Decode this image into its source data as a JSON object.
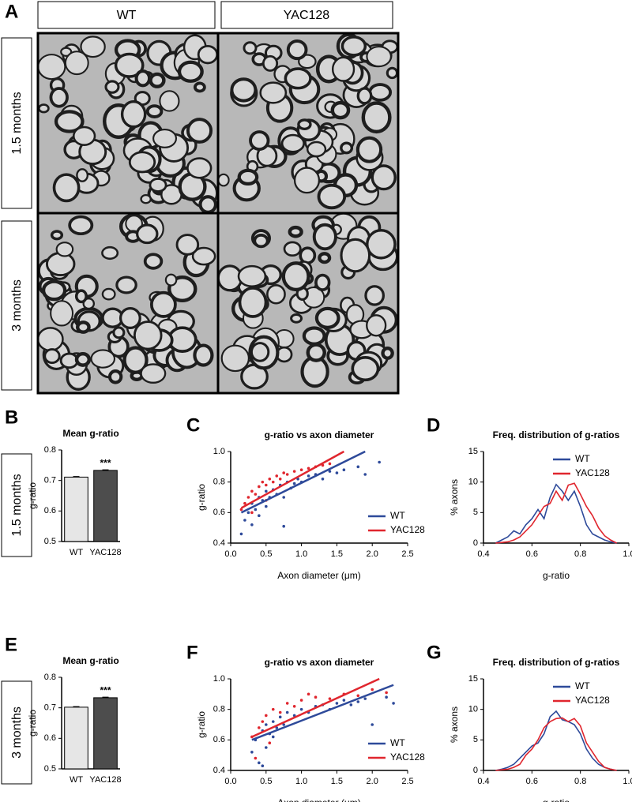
{
  "figure": {
    "panels": [
      "A",
      "B",
      "C",
      "D",
      "E",
      "F",
      "G"
    ],
    "columns": [
      "WT",
      "YAC128"
    ],
    "rows": [
      "1.5 months",
      "3 months"
    ],
    "chart_rows": [
      "1.5 months",
      "3 months"
    ]
  },
  "chart_data": [
    {
      "type": "bar",
      "title": "Mean g-ratio",
      "ylabel": "g-ratio",
      "categories": [
        "WT",
        "YAC128"
      ],
      "values": [
        0.711,
        0.733
      ],
      "errors": [
        0.002,
        0.002
      ],
      "colors": [
        "#e6e6e6",
        "#4d4d4d"
      ],
      "annotation": "***",
      "ylim": [
        0.5,
        0.8
      ],
      "yticks": [
        0.5,
        0.6,
        0.7,
        0.8
      ]
    },
    {
      "type": "scatter",
      "title": "g-ratio vs axon diameter",
      "xlabel": "Axon diameter (μm)",
      "ylabel": "g-ratio",
      "xlim": [
        0,
        2.5
      ],
      "xticks": [
        {
          "value": 0,
          "label": "0.0"
        },
        0.5,
        {
          "value": 1,
          "label": "1.0"
        },
        1.5,
        {
          "value": 2,
          "label": "2.0"
        },
        2.5
      ],
      "ylim": [
        0.4,
        1
      ],
      "yticks": [
        0.4,
        0.6,
        0.8,
        {
          "value": 1,
          "label": "1.0"
        }
      ],
      "legend": "bottom-right",
      "series": [
        {
          "name": "WT",
          "color": "#2e4a9a",
          "x": [
            0.15,
            0.2,
            0.25,
            0.3,
            0.3,
            0.35,
            0.4,
            0.4,
            0.45,
            0.5,
            0.5,
            0.55,
            0.6,
            0.65,
            0.7,
            0.75,
            0.8,
            0.85,
            0.9,
            0.95,
            1.0,
            1.1,
            1.2,
            1.3,
            1.4,
            1.5,
            1.6,
            1.8,
            1.9,
            2.1,
            0.75
          ],
          "values": [
            0.46,
            0.55,
            0.6,
            0.52,
            0.66,
            0.62,
            0.7,
            0.58,
            0.68,
            0.64,
            0.74,
            0.7,
            0.75,
            0.72,
            0.78,
            0.7,
            0.8,
            0.76,
            0.79,
            0.82,
            0.8,
            0.84,
            0.85,
            0.82,
            0.87,
            0.86,
            0.88,
            0.9,
            0.85,
            0.93,
            0.51
          ],
          "fit": {
            "x": [
              0.15,
              1.9
            ],
            "values": [
              0.6,
              1.0
            ]
          }
        },
        {
          "name": "YAC128",
          "color": "#e0262e",
          "x": [
            0.15,
            0.2,
            0.25,
            0.3,
            0.35,
            0.4,
            0.45,
            0.5,
            0.55,
            0.6,
            0.65,
            0.7,
            0.75,
            0.8,
            0.9,
            1.0,
            1.1,
            1.2,
            1.3,
            1.4,
            0.3,
            0.5
          ],
          "values": [
            0.62,
            0.66,
            0.7,
            0.74,
            0.72,
            0.77,
            0.8,
            0.78,
            0.82,
            0.8,
            0.84,
            0.82,
            0.86,
            0.85,
            0.87,
            0.88,
            0.89,
            0.9,
            0.91,
            0.92,
            0.6,
            0.68
          ],
          "fit": {
            "x": [
              0.15,
              1.6
            ],
            "values": [
              0.63,
              1.0
            ]
          }
        }
      ]
    },
    {
      "type": "line",
      "title": "Freq. distribution of g-ratios",
      "xlabel": "g-ratio",
      "ylabel": "% axons",
      "xlim": [
        0.4,
        1
      ],
      "xticks": [
        0.4,
        0.6,
        0.8,
        {
          "value": 1,
          "label": "1.0"
        }
      ],
      "ylim": [
        0,
        15
      ],
      "yticks": [
        0,
        5,
        10,
        15
      ],
      "legend": "top-right",
      "x": [
        0.45,
        0.475,
        0.5,
        0.525,
        0.55,
        0.575,
        0.6,
        0.625,
        0.65,
        0.675,
        0.7,
        0.725,
        0.75,
        0.775,
        0.8,
        0.825,
        0.85,
        0.875,
        0.9,
        0.925,
        0.95
      ],
      "series": [
        {
          "name": "WT",
          "color": "#2e4a9a",
          "values": [
            0,
            0.5,
            1,
            2,
            1.5,
            3,
            4,
            5.5,
            4,
            7.5,
            9.6,
            8.5,
            7,
            8.5,
            6,
            3,
            1.5,
            1,
            0.5,
            0.2,
            0
          ]
        },
        {
          "name": "YAC128",
          "color": "#e0262e",
          "values": [
            0,
            0.1,
            0.2,
            0.5,
            1,
            2,
            3,
            4.5,
            6,
            6.5,
            8.5,
            7,
            9.5,
            9.8,
            8,
            6,
            4.5,
            2.5,
            1.2,
            0.5,
            0
          ]
        }
      ]
    },
    {
      "type": "bar",
      "title": "Mean g-ratio",
      "ylabel": "g-ratio",
      "categories": [
        "WT",
        "YAC128"
      ],
      "values": [
        0.702,
        0.733
      ],
      "errors": [
        0.002,
        0.002
      ],
      "colors": [
        "#e6e6e6",
        "#4d4d4d"
      ],
      "annotation": "***",
      "ylim": [
        0.5,
        0.8
      ],
      "yticks": [
        0.5,
        0.6,
        0.7,
        0.8
      ]
    },
    {
      "type": "scatter",
      "title": "g-ratio vs axon diameter",
      "xlabel": "Axon diameter (μm)",
      "ylabel": "g-ratio",
      "xlim": [
        0,
        2.5
      ],
      "xticks": [
        {
          "value": 0,
          "label": "0.0"
        },
        0.5,
        {
          "value": 1,
          "label": "1.0"
        },
        1.5,
        {
          "value": 2,
          "label": "2.0"
        },
        2.5
      ],
      "ylim": [
        0.4,
        1
      ],
      "yticks": [
        0.4,
        0.6,
        0.8,
        {
          "value": 1,
          "label": "1.0"
        }
      ],
      "legend": "bottom-right",
      "series": [
        {
          "name": "WT",
          "color": "#2e4a9a",
          "x": [
            0.3,
            0.35,
            0.4,
            0.45,
            0.5,
            0.5,
            0.55,
            0.6,
            0.65,
            0.7,
            0.75,
            0.8,
            0.9,
            1.0,
            1.1,
            1.2,
            1.3,
            1.4,
            1.5,
            1.6,
            1.7,
            1.8,
            1.9,
            2.0,
            2.2,
            2.3,
            0.45,
            0.6
          ],
          "values": [
            0.52,
            0.6,
            0.45,
            0.66,
            0.55,
            0.7,
            0.64,
            0.72,
            0.68,
            0.75,
            0.7,
            0.78,
            0.76,
            0.8,
            0.78,
            0.82,
            0.83,
            0.8,
            0.84,
            0.86,
            0.83,
            0.85,
            0.87,
            0.7,
            0.88,
            0.84,
            0.43,
            0.62
          ],
          "fit": {
            "x": [
              0.3,
              2.3
            ],
            "values": [
              0.6,
              0.96
            ]
          }
        },
        {
          "name": "YAC128",
          "color": "#e0262e",
          "x": [
            0.3,
            0.4,
            0.45,
            0.5,
            0.6,
            0.7,
            0.8,
            0.9,
            1.0,
            1.2,
            1.4,
            1.6,
            1.8,
            2.0,
            2.2,
            0.35,
            0.55,
            1.1
          ],
          "values": [
            0.62,
            0.68,
            0.72,
            0.76,
            0.8,
            0.78,
            0.84,
            0.82,
            0.86,
            0.88,
            0.87,
            0.9,
            0.89,
            0.93,
            0.91,
            0.48,
            0.58,
            0.9
          ],
          "fit": {
            "x": [
              0.3,
              2.1
            ],
            "values": [
              0.62,
              1.0
            ]
          }
        }
      ]
    },
    {
      "type": "line",
      "title": "Freq. distribution of g-ratios",
      "xlabel": "g-ratio",
      "ylabel": "% axons",
      "xlim": [
        0.4,
        1
      ],
      "xticks": [
        0.4,
        0.6,
        0.8,
        {
          "value": 1,
          "label": "1.0"
        }
      ],
      "ylim": [
        0,
        15
      ],
      "yticks": [
        0,
        5,
        10,
        15
      ],
      "legend": "top-right",
      "x": [
        0.45,
        0.475,
        0.5,
        0.525,
        0.55,
        0.575,
        0.6,
        0.625,
        0.65,
        0.675,
        0.7,
        0.725,
        0.75,
        0.775,
        0.8,
        0.825,
        0.85,
        0.875,
        0.9,
        0.925,
        0.95
      ],
      "series": [
        {
          "name": "WT",
          "color": "#2e4a9a",
          "values": [
            0,
            0.2,
            0.5,
            1,
            2,
            3,
            4,
            4.5,
            6,
            8.8,
            9.7,
            8.3,
            8,
            7.5,
            6,
            3.5,
            2,
            1,
            0.5,
            0.2,
            0
          ]
        },
        {
          "name": "YAC128",
          "color": "#e0262e",
          "values": [
            0,
            0.1,
            0.2,
            0.5,
            1,
            2.5,
            3.5,
            5,
            7,
            8,
            8.5,
            8.6,
            8,
            8.5,
            7.3,
            4.5,
            3,
            1.5,
            0.5,
            0.2,
            0
          ]
        }
      ]
    }
  ]
}
